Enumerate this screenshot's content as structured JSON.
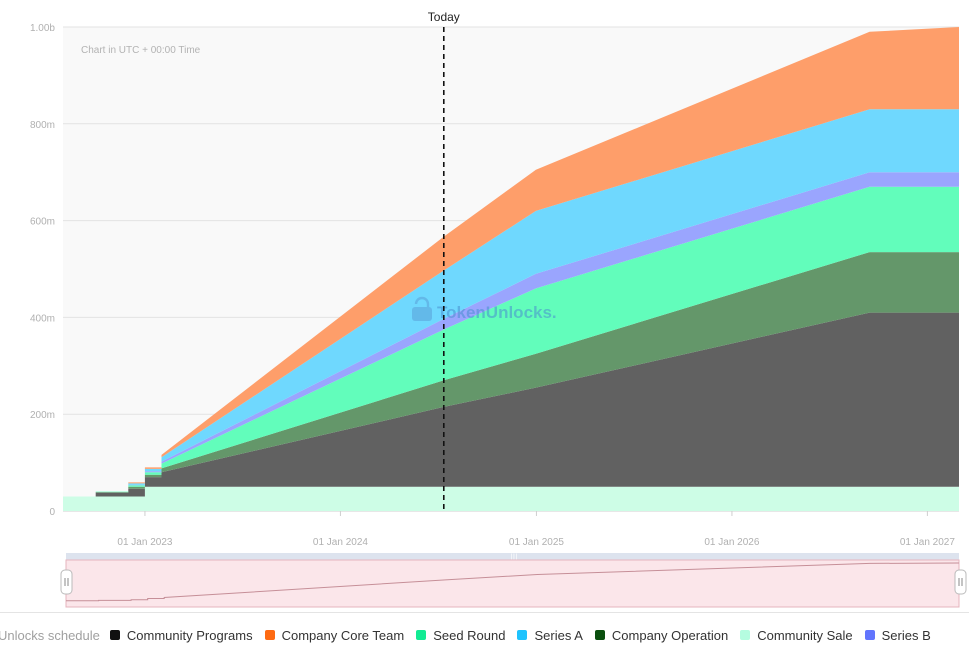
{
  "chart_data": {
    "type": "area",
    "stacked": true,
    "note": "Chart in UTC + 00:00 Time",
    "today_label": "Today",
    "watermark": "TokenUnlocks.",
    "y_ticks": [
      {
        "value": 0,
        "label": "0"
      },
      {
        "value": 200,
        "label": "200m"
      },
      {
        "value": 400,
        "label": "400m"
      },
      {
        "value": 600,
        "label": "600m"
      },
      {
        "value": 800,
        "label": "800m"
      },
      {
        "value": 1000,
        "label": "1.00b"
      }
    ],
    "ylim": [
      0,
      1000
    ],
    "x_ticks": [
      "01 Jan 2023",
      "01 Jan 2024",
      "01 Jan 2025",
      "01 Jan 2026",
      "01 Jan 2027"
    ],
    "x_dates": [
      "2022-08-01",
      "2022-10-01",
      "2022-12-01",
      "2023-01-01",
      "2023-02-01",
      "2024-07-12",
      "2024-12-31",
      "2026-09-15",
      "2027-03-01"
    ],
    "today_date": "2024-07-12",
    "series": [
      {
        "name": "Community Sale",
        "color": "#cdfde6",
        "values": [
          30,
          30,
          30,
          50,
          50,
          50,
          50,
          50,
          50
        ]
      },
      {
        "name": "Community Programs",
        "color": "#616161",
        "values": [
          0,
          8,
          16,
          20,
          30,
          165,
          205,
          360,
          360
        ]
      },
      {
        "name": "Company Operation",
        "color": "#64976a",
        "values": [
          0,
          1,
          4,
          5,
          8,
          55,
          70,
          125,
          125
        ]
      },
      {
        "name": "Seed Round",
        "color": "#62fdbb",
        "values": [
          0,
          1,
          3,
          5,
          10,
          105,
          135,
          135,
          135
        ]
      },
      {
        "name": "Series B",
        "color": "#9aa5fe",
        "values": [
          0,
          0,
          1,
          2,
          4,
          22,
          30,
          30,
          30
        ]
      },
      {
        "name": "Series A",
        "color": "#6fd8fe",
        "values": [
          0,
          0,
          3,
          5,
          9,
          100,
          130,
          130,
          130
        ]
      },
      {
        "name": "Company Core Team",
        "color": "#fe9e6a",
        "values": [
          0,
          0,
          2,
          3,
          5,
          70,
          85,
          160,
          170
        ]
      }
    ],
    "legend": {
      "title": "Unlocks schedule",
      "items": [
        {
          "name": "Community Programs",
          "color": "#111111"
        },
        {
          "name": "Company Core Team",
          "color": "#fe6a12"
        },
        {
          "name": "Seed Round",
          "color": "#12eb93"
        },
        {
          "name": "Series A",
          "color": "#1ec3fe"
        },
        {
          "name": "Company Operation",
          "color": "#0a4f0e"
        },
        {
          "name": "Community Sale",
          "color": "#b5fce0"
        },
        {
          "name": "Series B",
          "color": "#6275fd"
        }
      ]
    }
  }
}
